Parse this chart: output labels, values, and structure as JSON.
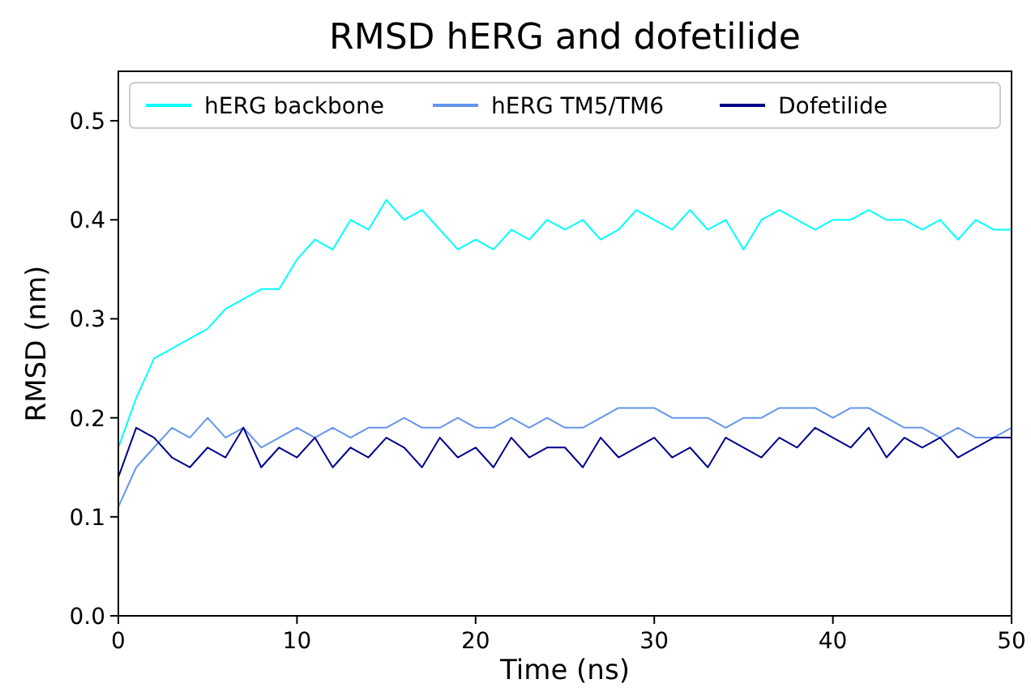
{
  "chart_data": {
    "type": "line",
    "title": "RMSD hERG and dofetilide",
    "xlabel": "Time (ns)",
    "ylabel": "RMSD (nm)",
    "x": [
      0,
      1,
      2,
      3,
      4,
      5,
      6,
      7,
      8,
      9,
      10,
      11,
      12,
      13,
      14,
      15,
      16,
      17,
      18,
      19,
      20,
      21,
      22,
      23,
      24,
      25,
      26,
      27,
      28,
      29,
      30,
      31,
      32,
      33,
      34,
      35,
      36,
      37,
      38,
      39,
      40,
      41,
      42,
      43,
      44,
      45,
      46,
      47,
      48,
      49,
      50
    ],
    "series": [
      {
        "name": "hERG backbone",
        "color": "#00ffff",
        "values": [
          0.17,
          0.22,
          0.26,
          0.27,
          0.28,
          0.29,
          0.31,
          0.32,
          0.33,
          0.33,
          0.36,
          0.38,
          0.37,
          0.4,
          0.39,
          0.42,
          0.4,
          0.41,
          0.39,
          0.37,
          0.38,
          0.37,
          0.39,
          0.38,
          0.4,
          0.39,
          0.4,
          0.38,
          0.39,
          0.41,
          0.4,
          0.39,
          0.41,
          0.39,
          0.4,
          0.37,
          0.4,
          0.41,
          0.4,
          0.39,
          0.4,
          0.4,
          0.41,
          0.4,
          0.4,
          0.39,
          0.4,
          0.38,
          0.4,
          0.39,
          0.39
        ]
      },
      {
        "name": "hERG TM5/TM6",
        "color": "#6495ed",
        "values": [
          0.11,
          0.15,
          0.17,
          0.19,
          0.18,
          0.2,
          0.18,
          0.19,
          0.17,
          0.18,
          0.19,
          0.18,
          0.19,
          0.18,
          0.19,
          0.19,
          0.2,
          0.19,
          0.19,
          0.2,
          0.19,
          0.19,
          0.2,
          0.19,
          0.2,
          0.19,
          0.19,
          0.2,
          0.21,
          0.21,
          0.21,
          0.2,
          0.2,
          0.2,
          0.19,
          0.2,
          0.2,
          0.21,
          0.21,
          0.21,
          0.2,
          0.21,
          0.21,
          0.2,
          0.19,
          0.19,
          0.18,
          0.19,
          0.18,
          0.18,
          0.19
        ]
      },
      {
        "name": "Dofetilide",
        "color": "#00008b",
        "values": [
          0.14,
          0.19,
          0.18,
          0.16,
          0.15,
          0.17,
          0.16,
          0.19,
          0.15,
          0.17,
          0.16,
          0.18,
          0.15,
          0.17,
          0.16,
          0.18,
          0.17,
          0.15,
          0.18,
          0.16,
          0.17,
          0.15,
          0.18,
          0.16,
          0.17,
          0.17,
          0.15,
          0.18,
          0.16,
          0.17,
          0.18,
          0.16,
          0.17,
          0.15,
          0.18,
          0.17,
          0.16,
          0.18,
          0.17,
          0.19,
          0.18,
          0.17,
          0.19,
          0.16,
          0.18,
          0.17,
          0.18,
          0.16,
          0.17,
          0.18,
          0.18
        ]
      }
    ],
    "xlim": [
      0,
      50
    ],
    "ylim": [
      0,
      0.55
    ],
    "xticks": [
      0,
      10,
      20,
      30,
      40,
      50
    ],
    "yticks": [
      {
        "value": 0,
        "label": "0.0"
      },
      0.1,
      0.2,
      0.3,
      0.4,
      0.5
    ],
    "legend": "top",
    "grid": false,
    "line_style": "solid"
  }
}
